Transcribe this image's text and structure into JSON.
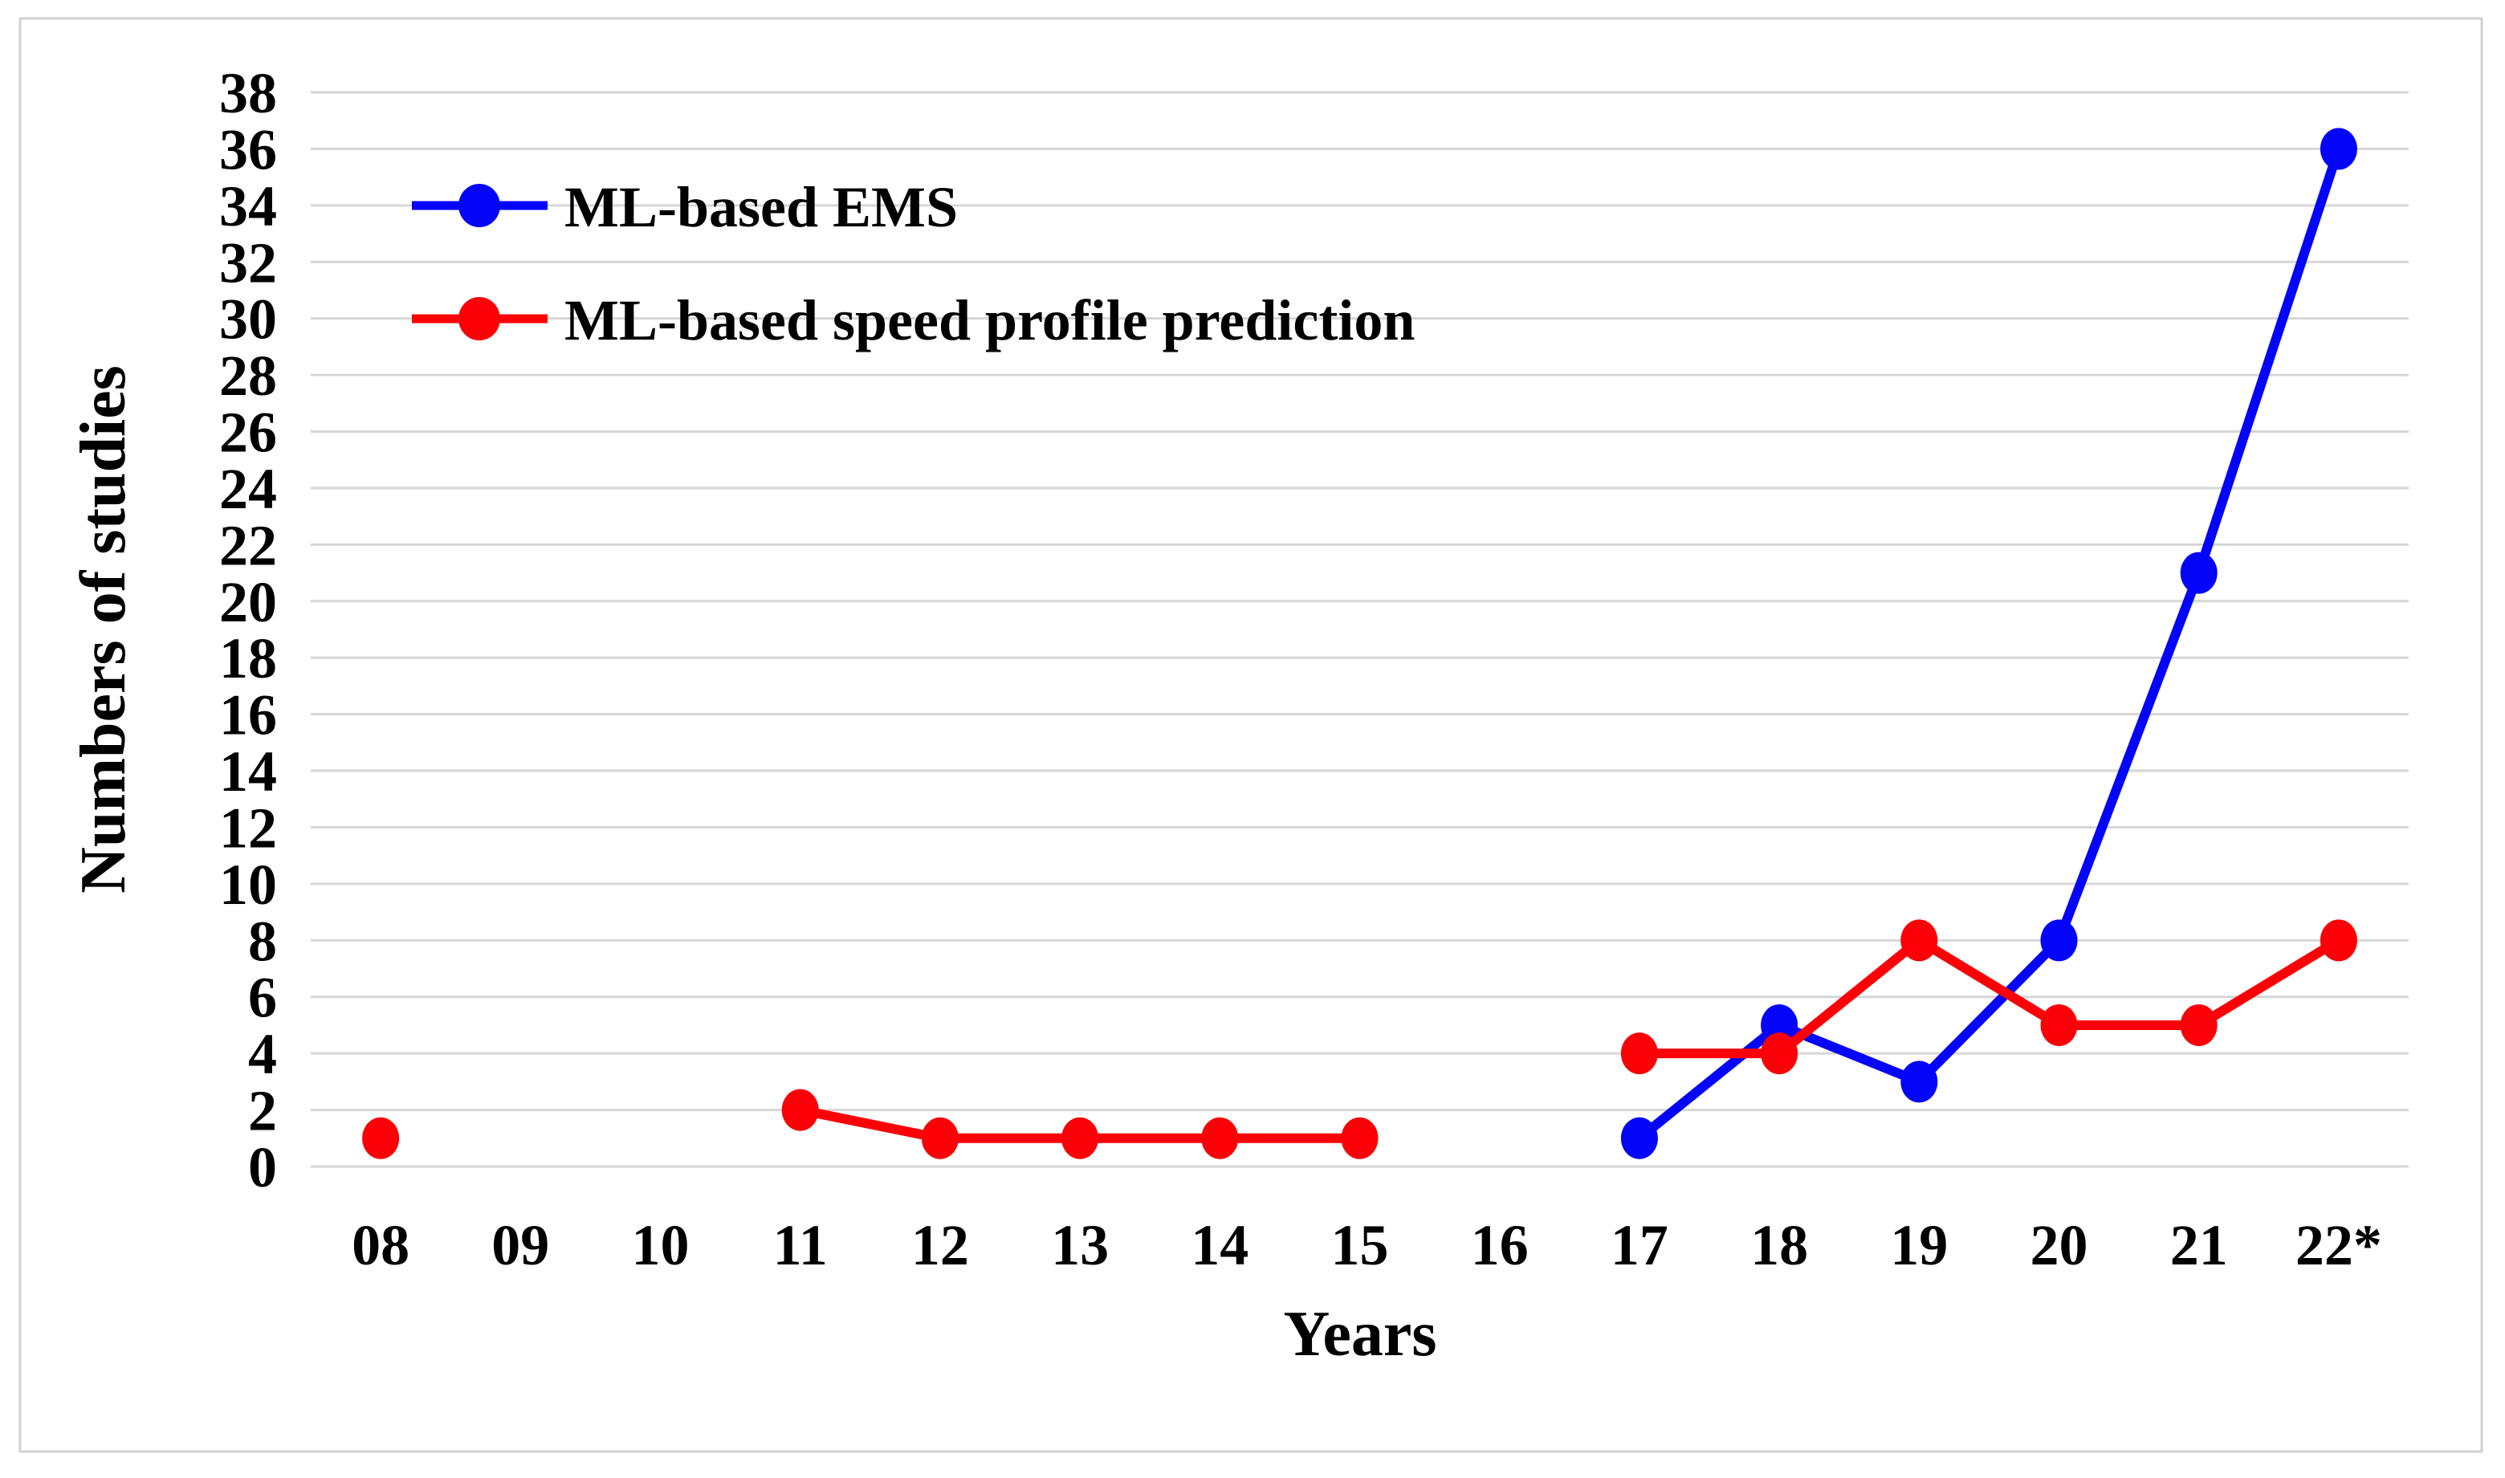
{
  "figure": {
    "background": "#ffffff",
    "border_color": "#d2d2d2",
    "gridline_color": "#d6d6d6"
  },
  "chart_data": {
    "type": "line",
    "title": "",
    "xlabel": "Years",
    "ylabel": "Numbers of studies",
    "categories": [
      "08",
      "09",
      "10",
      "11",
      "12",
      "13",
      "14",
      "15",
      "16",
      "17",
      "18",
      "19",
      "20",
      "21",
      "22*"
    ],
    "yticks": [
      0,
      2,
      4,
      6,
      8,
      10,
      12,
      14,
      16,
      18,
      20,
      22,
      24,
      26,
      28,
      30,
      32,
      34,
      36,
      38
    ],
    "ylim": [
      0,
      38
    ],
    "grid": "horizontal",
    "legend_position": "top-left-inside",
    "series": [
      {
        "name": "ML-based EMS",
        "color": "#0404f8",
        "values": [
          null,
          null,
          null,
          null,
          null,
          null,
          null,
          null,
          null,
          1,
          5,
          3,
          8,
          21,
          36
        ]
      },
      {
        "name": "ML-based speed profile prediction",
        "color": "#fb0006",
        "values": [
          1,
          null,
          null,
          2,
          1,
          1,
          1,
          1,
          null,
          4,
          4,
          8,
          5,
          5,
          8
        ]
      }
    ]
  }
}
